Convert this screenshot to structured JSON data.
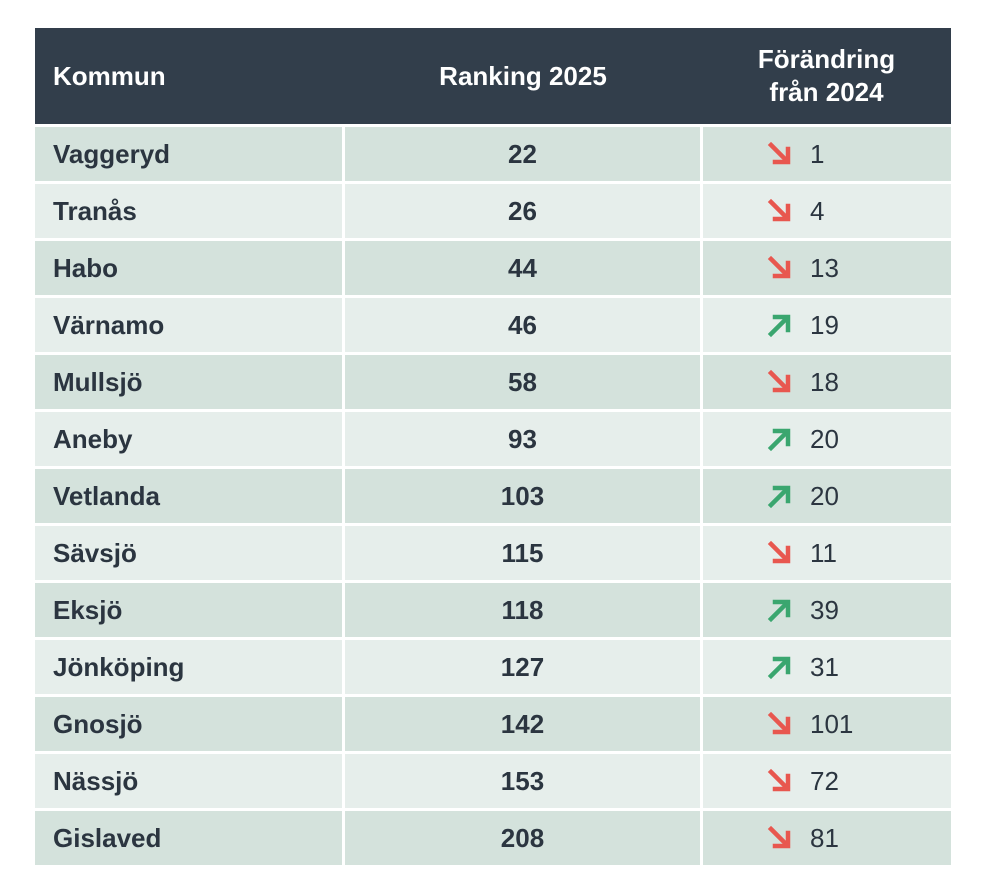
{
  "header": {
    "col_kommun": "Kommun",
    "col_ranking": "Ranking 2025",
    "col_change_line1": "Förändring",
    "col_change_line2": "från 2024"
  },
  "colors": {
    "header_bg": "#323e4b",
    "row_odd": "#d4e2dc",
    "row_even": "#e6eeeb",
    "arrow_down": "#e8574f",
    "arrow_up": "#3aa66f"
  },
  "rows": [
    {
      "kommun": "Vaggeryd",
      "ranking": "22",
      "direction": "down",
      "change": "1"
    },
    {
      "kommun": "Tranås",
      "ranking": "26",
      "direction": "down",
      "change": "4"
    },
    {
      "kommun": "Habo",
      "ranking": "44",
      "direction": "down",
      "change": "13"
    },
    {
      "kommun": "Värnamo",
      "ranking": "46",
      "direction": "up",
      "change": "19"
    },
    {
      "kommun": "Mullsjö",
      "ranking": "58",
      "direction": "down",
      "change": "18"
    },
    {
      "kommun": "Aneby",
      "ranking": "93",
      "direction": "up",
      "change": "20"
    },
    {
      "kommun": "Vetlanda",
      "ranking": "103",
      "direction": "up",
      "change": "20"
    },
    {
      "kommun": "Sävsjö",
      "ranking": "115",
      "direction": "down",
      "change": "11"
    },
    {
      "kommun": "Eksjö",
      "ranking": "118",
      "direction": "up",
      "change": "39"
    },
    {
      "kommun": "Jönköping",
      "ranking": "127",
      "direction": "up",
      "change": "31"
    },
    {
      "kommun": "Gnosjö",
      "ranking": "142",
      "direction": "down",
      "change": "101"
    },
    {
      "kommun": "Nässjö",
      "ranking": "153",
      "direction": "down",
      "change": "72"
    },
    {
      "kommun": "Gislaved",
      "ranking": "208",
      "direction": "down",
      "change": "81"
    }
  ]
}
